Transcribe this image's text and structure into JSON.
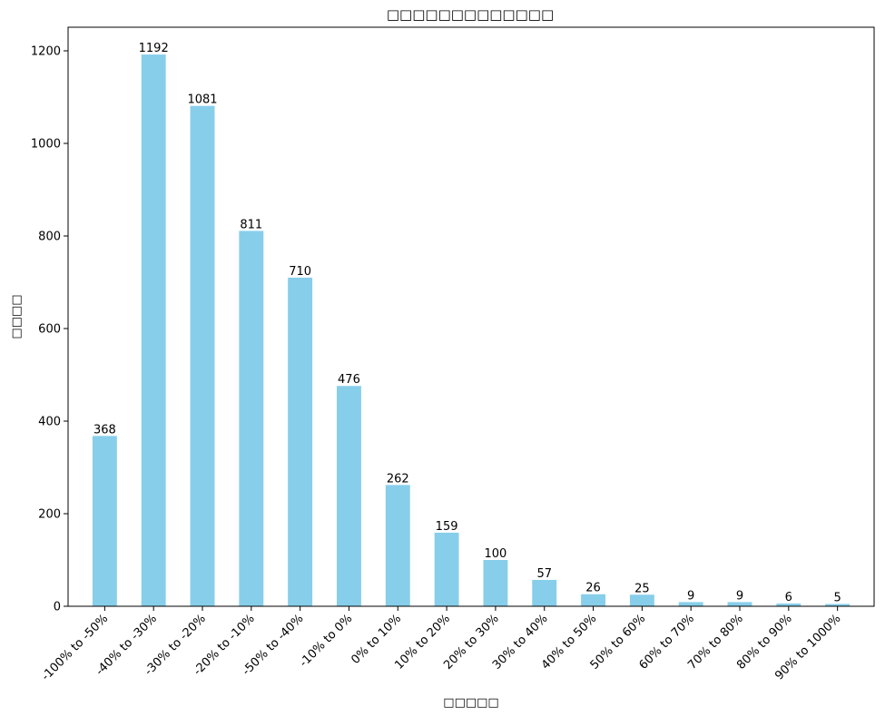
{
  "chart_data": {
    "type": "bar",
    "title": "□□□□□□□□□□□□□",
    "xlabel": "□□□□□",
    "ylabel": "□□□□",
    "categories": [
      "-100% to -50%",
      "-40% to -30%",
      "-30% to -20%",
      "-20% to -10%",
      "-50% to -40%",
      "-10% to 0%",
      "0% to 10%",
      "10% to 20%",
      "20% to 30%",
      "30% to 40%",
      "40% to 50%",
      "50% to 60%",
      "60% to 70%",
      "70% to 80%",
      "80% to 90%",
      "90% to 1000%"
    ],
    "values": [
      368,
      1192,
      1081,
      811,
      710,
      476,
      262,
      159,
      100,
      57,
      26,
      25,
      9,
      9,
      6,
      5
    ],
    "ylim": [
      0,
      1251
    ],
    "yticks": [
      0,
      200,
      400,
      600,
      800,
      1000,
      1200
    ],
    "grid": false,
    "colors": {
      "bar": "#87ceeb",
      "axis": "#000000"
    }
  }
}
